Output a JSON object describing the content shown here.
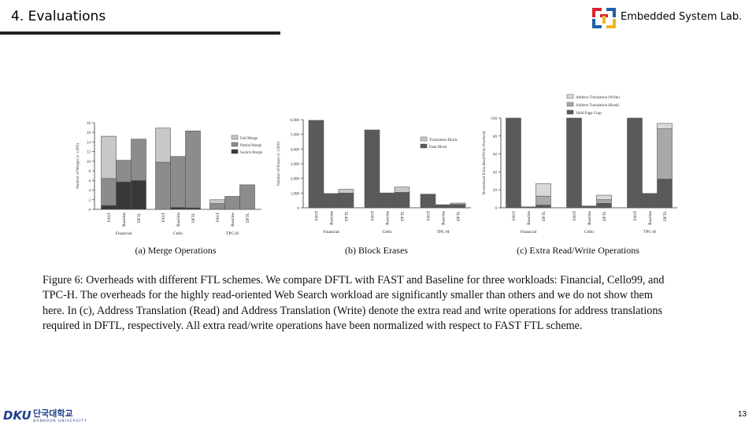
{
  "header": {
    "title": "4. Evaluations",
    "lab_name": "Embedded System Lab.",
    "logo_icon": "embedded-lab-logo",
    "logo_colors": [
      "#d7262c",
      "#1f5fa8",
      "#f2b51c",
      "#1f5fa8"
    ]
  },
  "chart_data": [
    {
      "type": "bar",
      "stacked": true,
      "ylabel": "Number of Merges (x 1,000)",
      "ylim": [
        0,
        18
      ],
      "yticks": [
        0,
        2,
        4,
        6,
        8,
        10,
        12,
        14,
        16,
        18
      ],
      "groups": [
        "Financial",
        "Cello",
        "TPC-H"
      ],
      "categories": [
        "FAST",
        "Baseline",
        "DFTL"
      ],
      "legend": [
        "Full Merge",
        "Partial Merge",
        "Switch Merge"
      ],
      "legend_position": "top-right",
      "colors": [
        "#c8c8c8",
        "#8c8c8c",
        "#383838"
      ],
      "series": [
        {
          "name": "Switch Merge",
          "values": [
            [
              0.8,
              5.7,
              6.0
            ],
            [
              0,
              0.4,
              0.3
            ],
            [
              0,
              0,
              0
            ]
          ]
        },
        {
          "name": "Partial Merge",
          "values": [
            [
              5.6,
              4.5,
              8.6
            ],
            [
              9.8,
              10.6,
              16.0
            ],
            [
              1.2,
              2.7,
              5.1
            ]
          ]
        },
        {
          "name": "Full Merge",
          "values": [
            [
              8.8,
              0,
              0
            ],
            [
              7.1,
              0,
              0
            ],
            [
              0.8,
              0,
              0
            ]
          ]
        }
      ],
      "caption": "(a) Merge Operations"
    },
    {
      "type": "bar",
      "stacked": true,
      "ylabel": "Number of Erases (x 1,000)",
      "ylim": [
        0,
        6000
      ],
      "yticks": [
        0,
        1000,
        2000,
        3000,
        4000,
        5000,
        6000
      ],
      "ytick_labels": [
        "0",
        "1,000",
        "2,000",
        "3,000",
        "4,000",
        "5,000",
        "6,000"
      ],
      "groups": [
        "Financial",
        "Cello",
        "TPC-H"
      ],
      "categories": [
        "FAST",
        "Baseline",
        "DFTL"
      ],
      "legend": [
        "Translation Block",
        "Data Block"
      ],
      "legend_position": "top-right",
      "colors": [
        "#c8c8c8",
        "#5a5a5a"
      ],
      "series": [
        {
          "name": "Data Block",
          "values": [
            [
              5950,
              970,
              1000
            ],
            [
              5300,
              1010,
              1050
            ],
            [
              930,
              210,
              230
            ]
          ]
        },
        {
          "name": "Translation Block",
          "values": [
            [
              0,
              0,
              260
            ],
            [
              0,
              0,
              360
            ],
            [
              0,
              0,
              90
            ]
          ]
        }
      ],
      "caption": "(b) Block Erases"
    },
    {
      "type": "bar",
      "stacked": true,
      "ylabel": "Normalized Extra Read/Write Overhead",
      "ylim": [
        0,
        100
      ],
      "yticks": [
        0,
        20,
        40,
        60,
        80,
        100
      ],
      "groups": [
        "Financial",
        "Cello",
        "TPC-H"
      ],
      "categories": [
        "FAST",
        "Baseline",
        "DFTL"
      ],
      "legend": [
        "Address Translation (Write)",
        "Address Translation (Read)",
        "Valid Page Copy"
      ],
      "legend_position": "top",
      "colors": [
        "#d9d9d9",
        "#a9a9a9",
        "#5a5a5a"
      ],
      "series": [
        {
          "name": "Valid Page Copy",
          "values": [
            [
              100,
              1,
              3
            ],
            [
              100,
              2,
              5
            ],
            [
              100,
              16,
              32
            ]
          ]
        },
        {
          "name": "Address Translation (Read)",
          "values": [
            [
              0,
              0,
              10
            ],
            [
              0,
              0,
              4
            ],
            [
              0,
              0,
              56
            ]
          ]
        },
        {
          "name": "Address Translation (Write)",
          "values": [
            [
              0,
              0,
              14
            ],
            [
              0,
              0,
              5
            ],
            [
              0,
              0,
              6
            ]
          ]
        }
      ],
      "caption": "(c) Extra Read/Write Operations"
    }
  ],
  "caption": {
    "lines": [
      "Figure 6: Overheads with different FTL schemes. We compare DFTL with FAST and Baseline for three workloads: Financial, Cello99, and",
      "TPC-H. The overheads for the highly read-oriented Web Search workload are significantly smaller than others and we do not show them",
      "here. In (c), Address Translation (Read) and Address Translation (Write) denote the extra read and write operations for address translations",
      "required in DFTL, respectively. All extra read/write operations have been normalized with respect to FAST FTL scheme."
    ]
  },
  "footer": {
    "university_logo": "dankook-university-logo",
    "university_lettering": "DKU 단국대학교 DANKOOK UNIVERSITY",
    "page_number": "13"
  }
}
